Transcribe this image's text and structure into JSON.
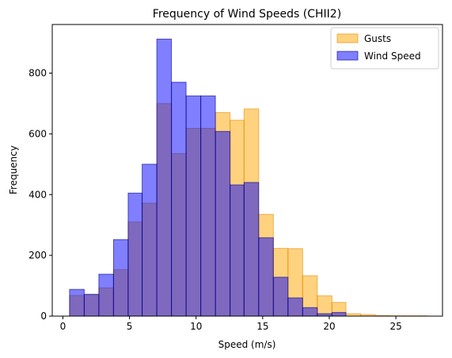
{
  "chart_data": {
    "type": "bar",
    "title": "Frequency of Wind Speeds (CHII2)",
    "xlabel": "Speed (m/s)",
    "ylabel": "Frequency",
    "xlim": [
      -0.8,
      28.5
    ],
    "ylim": [
      0,
      960
    ],
    "xticks": [
      0,
      5,
      10,
      15,
      20,
      25
    ],
    "yticks": [
      0,
      200,
      400,
      600,
      800
    ],
    "legend_position": "top-right",
    "grid": false,
    "series": [
      {
        "name": "Gusts",
        "color": "#ffa500",
        "edge_color": "#e08c00",
        "opacity": 0.5,
        "bins": [
          [
            0.5,
            1.6,
            68
          ],
          [
            1.6,
            2.7,
            70
          ],
          [
            2.7,
            3.8,
            93
          ],
          [
            3.8,
            4.9,
            153
          ],
          [
            4.9,
            5.95,
            310
          ],
          [
            5.95,
            7.05,
            372
          ],
          [
            7.05,
            8.15,
            700
          ],
          [
            8.15,
            9.25,
            535
          ],
          [
            9.25,
            10.35,
            618
          ],
          [
            10.35,
            11.45,
            618
          ],
          [
            11.45,
            12.55,
            670
          ],
          [
            12.55,
            13.6,
            645
          ],
          [
            13.6,
            14.7,
            682
          ],
          [
            14.7,
            15.8,
            335
          ],
          [
            15.8,
            16.9,
            223
          ],
          [
            16.9,
            18.0,
            222
          ],
          [
            18.0,
            19.1,
            133
          ],
          [
            19.1,
            20.2,
            67
          ],
          [
            20.2,
            21.25,
            45
          ],
          [
            21.25,
            22.35,
            8
          ],
          [
            22.35,
            23.45,
            5
          ],
          [
            23.45,
            24.55,
            2
          ],
          [
            24.55,
            25.65,
            1
          ],
          [
            25.65,
            26.75,
            1
          ],
          [
            26.75,
            27.35,
            1
          ]
        ]
      },
      {
        "name": "Wind Speed",
        "color": "#0000ff",
        "edge_color": "#00008b",
        "opacity": 0.5,
        "bins": [
          [
            0.5,
            1.6,
            88
          ],
          [
            1.6,
            2.7,
            72
          ],
          [
            2.7,
            3.8,
            138
          ],
          [
            3.8,
            4.9,
            252
          ],
          [
            4.9,
            5.95,
            405
          ],
          [
            5.95,
            7.05,
            500
          ],
          [
            7.05,
            8.15,
            912
          ],
          [
            8.15,
            9.25,
            770
          ],
          [
            9.25,
            10.35,
            725
          ],
          [
            10.35,
            11.45,
            725
          ],
          [
            11.45,
            12.55,
            608
          ],
          [
            12.55,
            13.6,
            432
          ],
          [
            13.6,
            14.7,
            440
          ],
          [
            14.7,
            15.8,
            258
          ],
          [
            15.8,
            16.9,
            128
          ],
          [
            16.9,
            18.0,
            60
          ],
          [
            18.0,
            19.1,
            28
          ],
          [
            19.1,
            20.2,
            8
          ],
          [
            20.2,
            21.25,
            12
          ]
        ]
      }
    ]
  }
}
